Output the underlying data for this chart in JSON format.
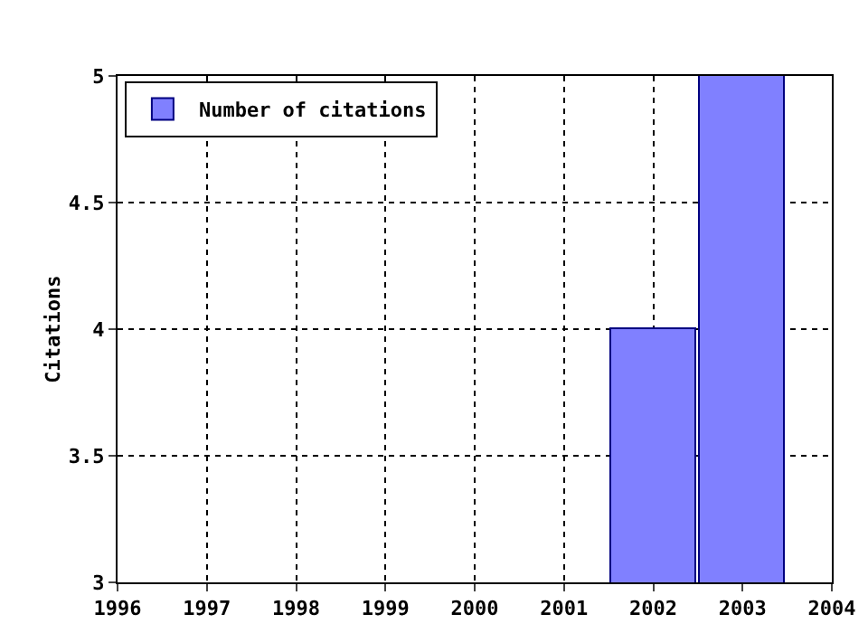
{
  "chart_data": {
    "type": "bar",
    "ylabel": "Citations",
    "x": [
      2002,
      2003
    ],
    "series": [
      {
        "name": "Number of citations",
        "color": "#8080ff",
        "values": [
          4,
          5
        ]
      }
    ],
    "xlim": [
      1996,
      2004
    ],
    "xticks": [
      1996,
      1997,
      1998,
      1999,
      2000,
      2001,
      2002,
      2003,
      2004
    ],
    "ylim": [
      3,
      5
    ],
    "yticks": [
      3,
      3.5,
      4,
      4.5,
      5
    ],
    "grid": true,
    "legend": "top left"
  }
}
